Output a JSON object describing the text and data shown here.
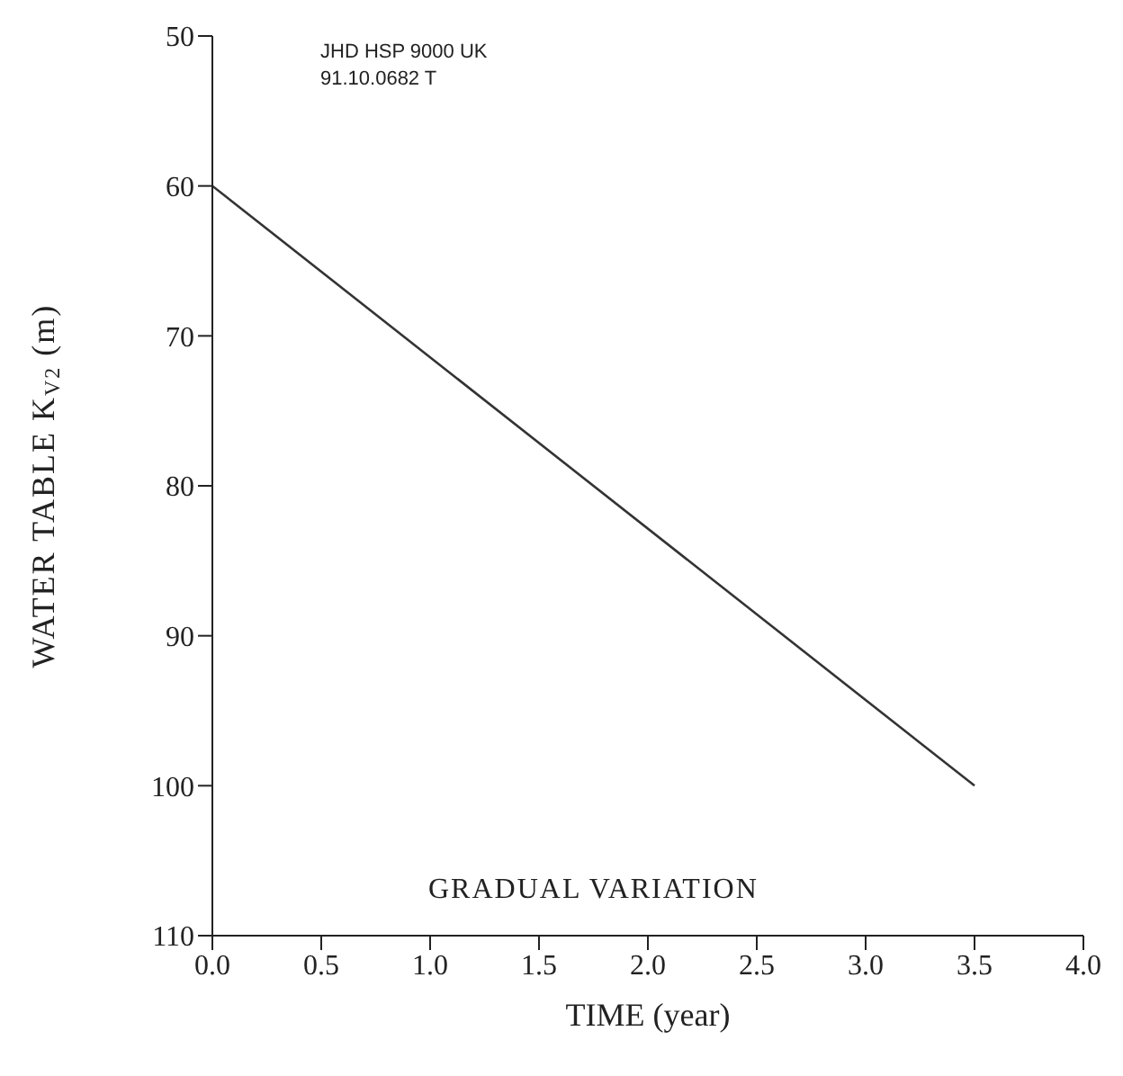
{
  "chart_data": {
    "type": "line",
    "xlabel": "TIME (year)",
    "ylabel": "WATER TABLE K$_{V2}$ (m)",
    "annotations": [
      "JHD HSP 9000 UK",
      "91.10.0682 T",
      "GRADUAL VARIATION"
    ],
    "series": [
      {
        "color": "#333333",
        "x": [
          0,
          3.5
        ],
        "values": [
          60,
          100
        ]
      }
    ],
    "xlim": [
      0,
      4
    ],
    "xticks": [
      {
        "value": 0,
        "label": "0.0"
      },
      {
        "value": 0.5,
        "label": "0.5"
      },
      {
        "value": 1,
        "label": "1.0"
      },
      {
        "value": 1.5,
        "label": "1.5"
      },
      {
        "value": 2,
        "label": "2.0"
      },
      {
        "value": 2.5,
        "label": "2.5"
      },
      {
        "value": 3,
        "label": "3.0"
      },
      {
        "value": 3.5,
        "label": "3.5"
      },
      {
        "value": 4,
        "label": "4.0"
      }
    ],
    "ylim": [
      110,
      50
    ],
    "yticks": [
      50,
      60,
      70,
      80,
      90,
      100,
      110
    ],
    "marker": "none",
    "line_style": "solid"
  }
}
